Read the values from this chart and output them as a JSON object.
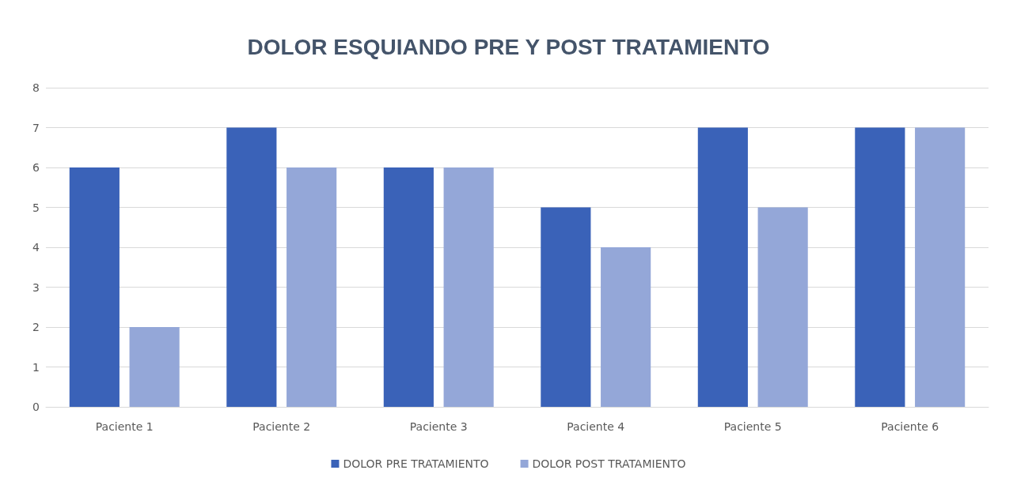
{
  "chart_data": {
    "type": "bar",
    "title": "DOLOR ESQUIANDO PRE Y POST TRATAMIENTO",
    "categories": [
      "Paciente 1",
      "Paciente 2",
      "Paciente 3",
      "Paciente 4",
      "Paciente 5",
      "Paciente 6"
    ],
    "series": [
      {
        "name": "DOLOR PRE TRATAMIENTO",
        "color": "#3a62b8",
        "values": [
          6,
          7,
          6,
          5,
          7,
          7
        ]
      },
      {
        "name": "DOLOR POST TRATAMIENTO",
        "color": "#94a7d8",
        "values": [
          2,
          6,
          6,
          4,
          5,
          7
        ]
      }
    ],
    "ylim": [
      0,
      8
    ],
    "yticks": [
      0,
      1,
      2,
      3,
      4,
      5,
      6,
      7,
      8
    ],
    "grid": "y",
    "legend": "bottom"
  }
}
